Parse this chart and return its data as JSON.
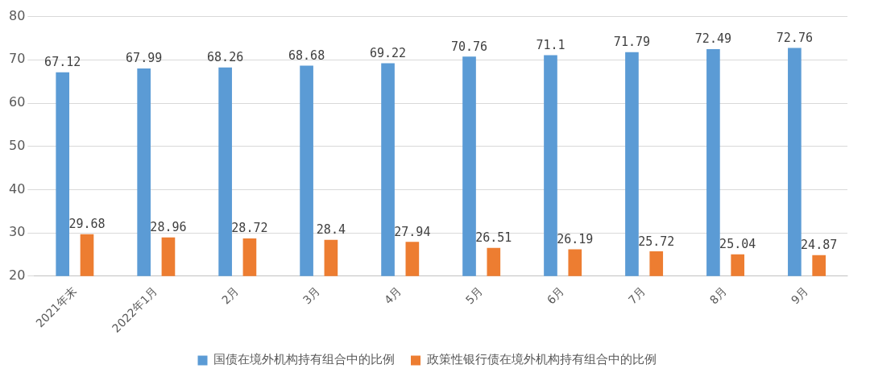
{
  "chart_data": {
    "type": "bar",
    "categories": [
      "2021年末",
      "2022年1月",
      "2月",
      "3月",
      "4月",
      "5月",
      "6月",
      "7月",
      "8月",
      "9月"
    ],
    "series": [
      {
        "name": "国债在境外机构持有组合中的比例",
        "color": "#5b9bd5",
        "values": [
          67.12,
          67.99,
          68.26,
          68.68,
          69.22,
          70.76,
          71.1,
          71.79,
          72.49,
          72.76
        ]
      },
      {
        "name": "政策性银行债在境外机构持有组合中的比例",
        "color": "#ed7d31",
        "values": [
          29.68,
          28.96,
          28.72,
          28.4,
          27.94,
          26.51,
          26.19,
          25.72,
          25.04,
          24.87
        ]
      }
    ],
    "ylim": [
      20,
      80
    ],
    "yticks": [
      20,
      30,
      40,
      50,
      60,
      70,
      80
    ],
    "grid": "y",
    "legend": "bottom",
    "data_labels": true
  }
}
